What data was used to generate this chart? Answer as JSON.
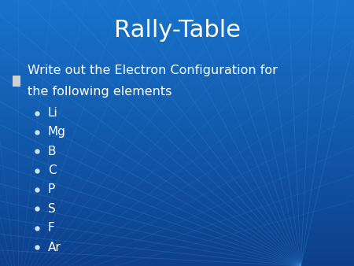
{
  "title": "Rally-Table",
  "title_fontsize": 22,
  "title_color": "#ffffff",
  "bg_color": "#1874cc",
  "bg_color_bottom": "#0d4ea0",
  "bullet_header_line1": "Write out the Electron Configuration for",
  "bullet_header_line2": "the following elements",
  "bullet_header_fontsize": 11.5,
  "bullet_header_color": "#ffffff",
  "bullet_square_color": "#d0d0d0",
  "items": [
    "Li",
    "Mg",
    "B",
    "C",
    "P",
    "S",
    "F",
    "Ar"
  ],
  "items_fontsize": 11,
  "items_color": "#ffffff",
  "dot_color": "#d0e4f8",
  "ray_color": "#2a7ae0",
  "ray_alpha": 0.25,
  "figwidth": 4.5,
  "figheight": 3.38,
  "dpi": 100
}
